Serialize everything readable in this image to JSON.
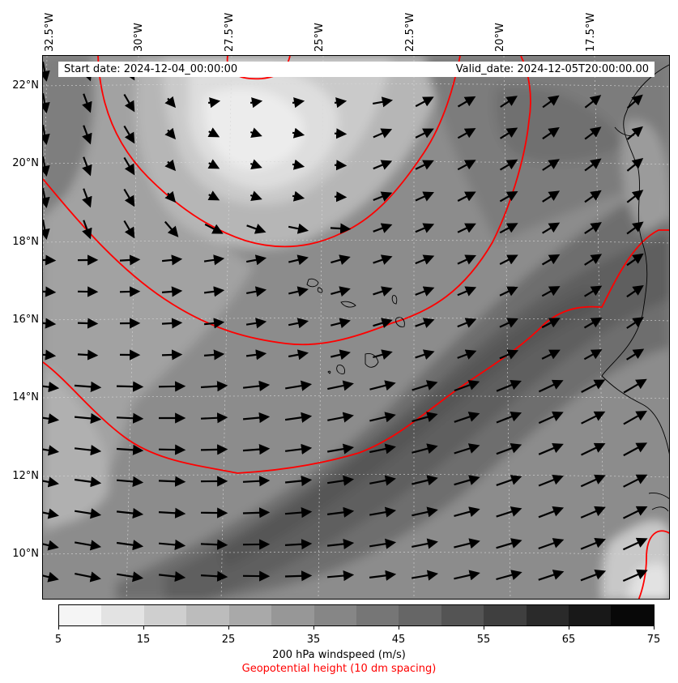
{
  "header": {
    "start_date": "Start date: 2024-12-04_00:00:00",
    "valid_date": "Valid_date: 2024-12-05T20:00:00.00"
  },
  "axes": {
    "longitude_labels": [
      "32.5°W",
      "30°W",
      "27.5°W",
      "25°W",
      "22.5°W",
      "20°W",
      "17.5°W"
    ],
    "latitude_labels": [
      "22°N",
      "20°N",
      "18°N",
      "16°N",
      "14°N",
      "12°N",
      "10°N"
    ]
  },
  "colorbar": {
    "ticks": [
      "5",
      "15",
      "25",
      "35",
      "45",
      "55",
      "65",
      "75"
    ],
    "colors": [
      "#f5f5f5",
      "#e3e3e3",
      "#cfcfcf",
      "#bcbcbc",
      "#a9a9a9",
      "#979797",
      "#868686",
      "#767676",
      "#666666",
      "#545454",
      "#3f3f3f",
      "#2a2a2a",
      "#181818",
      "#080808"
    ],
    "label": "200 hPa windspeed (m/s)",
    "sublabel": "Geopotential height (10 dm spacing)",
    "sublabel_color": "#ff0000"
  },
  "overlay": {
    "contour_color": "#ff0000",
    "vector_color": "#000000",
    "coastline_color": "#000000"
  }
}
